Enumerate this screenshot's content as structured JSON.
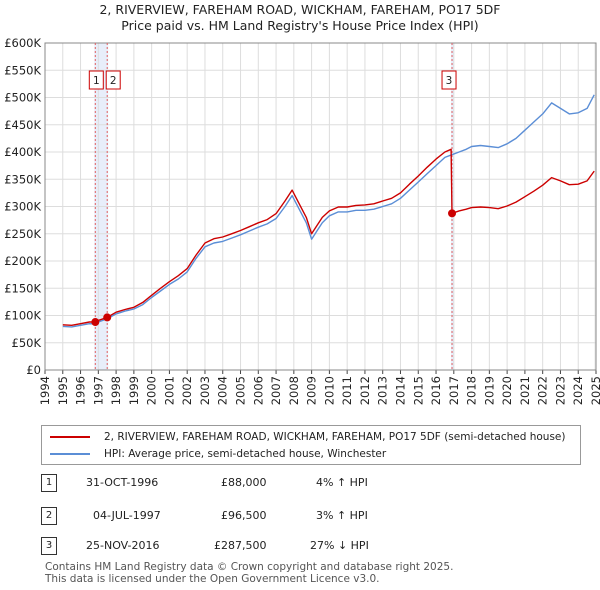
{
  "title_line1": "2, RIVERVIEW, FAREHAM ROAD, WICKHAM, FAREHAM, PO17 5DF",
  "title_line2": "Price paid vs. HM Land Registry's House Price Index (HPI)",
  "colors": {
    "red": "#cc0000",
    "blue": "#5b8ed6",
    "grid": "#dddddd",
    "shade": "#e8eefa"
  },
  "legend": {
    "red_label": "2, RIVERVIEW, FAREHAM ROAD, WICKHAM, FAREHAM, PO17 5DF (semi-detached house)",
    "blue_label": "HPI: Average price, semi-detached house, Winchester"
  },
  "transactions": [
    {
      "n": "1",
      "date": "31-OCT-1996",
      "price": "£88,000",
      "hpi": "4% ↑ HPI"
    },
    {
      "n": "2",
      "date": "04-JUL-1997",
      "price": "£96,500",
      "hpi": "3% ↑ HPI"
    },
    {
      "n": "3",
      "date": "25-NOV-2016",
      "price": "£287,500",
      "hpi": "27% ↓ HPI"
    }
  ],
  "footer_line1": "Contains HM Land Registry data © Crown copyright and database right 2025.",
  "footer_line2": "This data is licensed under the Open Government Licence v3.0.",
  "chart_data": {
    "type": "line",
    "title": "2, RIVERVIEW, FAREHAM ROAD, WICKHAM, FAREHAM, PO17 5DF Price paid vs. HM Land Registry's House Price Index (HPI)",
    "xlim": [
      1994,
      2025
    ],
    "ylim": [
      0,
      600000
    ],
    "x_ticks": [
      1994,
      1995,
      1996,
      1997,
      1998,
      1999,
      2000,
      2001,
      2002,
      2003,
      2004,
      2005,
      2006,
      2007,
      2008,
      2009,
      2010,
      2011,
      2012,
      2013,
      2014,
      2015,
      2016,
      2017,
      2018,
      2019,
      2020,
      2021,
      2022,
      2023,
      2024,
      2025
    ],
    "y_ticks": [
      0,
      50000,
      100000,
      150000,
      200000,
      250000,
      300000,
      350000,
      400000,
      450000,
      500000,
      550000,
      600000
    ],
    "y_tick_labels": [
      "£0",
      "£50K",
      "£100K",
      "£150K",
      "£200K",
      "£250K",
      "£300K",
      "£350K",
      "£400K",
      "£450K",
      "£500K",
      "£550K",
      "£600K"
    ],
    "grid": true,
    "sales": [
      {
        "label": "1",
        "x": 1996.83,
        "y": 88000
      },
      {
        "label": "2",
        "x": 1997.5,
        "y": 96500
      },
      {
        "label": "3",
        "x": 2016.9,
        "y": 287500
      }
    ],
    "series": [
      {
        "name": "HPI: Average price, semi-detached house, Winchester",
        "color": "blue",
        "x": [
          1995,
          1995.5,
          1996,
          1996.5,
          1996.83,
          1997,
          1997.5,
          1998,
          1998.5,
          1999,
          1999.5,
          2000,
          2000.5,
          2001,
          2001.5,
          2002,
          2002.5,
          2003,
          2003.5,
          2004,
          2004.5,
          2005,
          2005.5,
          2006,
          2006.5,
          2007,
          2007.5,
          2007.9,
          2008.3,
          2008.7,
          2009,
          2009.3,
          2009.6,
          2010,
          2010.5,
          2011,
          2011.5,
          2012,
          2012.5,
          2013,
          2013.5,
          2014,
          2014.5,
          2015,
          2015.5,
          2016,
          2016.5,
          2016.9,
          2017.3,
          2017.7,
          2018,
          2018.5,
          2019,
          2019.5,
          2020,
          2020.5,
          2021,
          2021.5,
          2022,
          2022.5,
          2023,
          2023.5,
          2024,
          2024.5,
          2024.9
        ],
        "y": [
          80000,
          79000,
          82000,
          85000,
          84500,
          88000,
          94000,
          103000,
          108000,
          112000,
          120000,
          133000,
          145000,
          157000,
          167000,
          180000,
          205000,
          226000,
          233000,
          236000,
          242000,
          248000,
          255000,
          262000,
          268000,
          278000,
          300000,
          320000,
          295000,
          270000,
          240000,
          255000,
          270000,
          283000,
          290000,
          290000,
          293000,
          293000,
          295000,
          300000,
          305000,
          315000,
          330000,
          345000,
          360000,
          375000,
          390000,
          395000,
          400000,
          405000,
          410000,
          412000,
          410000,
          408000,
          415000,
          425000,
          440000,
          455000,
          470000,
          490000,
          480000,
          470000,
          472000,
          480000,
          505000
        ]
      },
      {
        "name": "2, RIVERVIEW, FAREHAM ROAD, WICKHAM, FAREHAM, PO17 5DF (semi-detached house)",
        "color": "red",
        "x": [
          1995,
          1995.5,
          1996,
          1996.5,
          1996.83,
          1997,
          1997.5,
          1998,
          1998.5,
          1999,
          1999.5,
          2000,
          2000.5,
          2001,
          2001.5,
          2002,
          2002.5,
          2003,
          2003.5,
          2004,
          2004.5,
          2005,
          2005.5,
          2006,
          2006.5,
          2007,
          2007.5,
          2007.9,
          2008.3,
          2008.7,
          2009,
          2009.3,
          2009.6,
          2010,
          2010.5,
          2011,
          2011.5,
          2012,
          2012.5,
          2013,
          2013.5,
          2014,
          2014.5,
          2015,
          2015.5,
          2016,
          2016.5,
          2016.85,
          2016.9,
          2017.3,
          2017.7,
          2018,
          2018.5,
          2019,
          2019.5,
          2020,
          2020.5,
          2021,
          2021.5,
          2022,
          2022.5,
          2023,
          2023.5,
          2024,
          2024.5,
          2024.9
        ],
        "y": [
          83000,
          82000,
          85000,
          88000,
          88000,
          91000,
          96500,
          106000,
          111000,
          115000,
          124000,
          137000,
          150000,
          162000,
          173000,
          186000,
          211000,
          233000,
          241000,
          244000,
          250000,
          256000,
          263000,
          270000,
          276000,
          287000,
          310000,
          330000,
          305000,
          280000,
          250000,
          265000,
          280000,
          292000,
          299000,
          299000,
          302000,
          303000,
          305000,
          310000,
          315000,
          325000,
          341000,
          356000,
          372000,
          387000,
          400000,
          405000,
          287500,
          292000,
          295000,
          298000,
          299000,
          298000,
          296000,
          301000,
          308000,
          318000,
          328000,
          339000,
          353000,
          347000,
          340000,
          341000,
          347000,
          365000
        ]
      }
    ]
  }
}
